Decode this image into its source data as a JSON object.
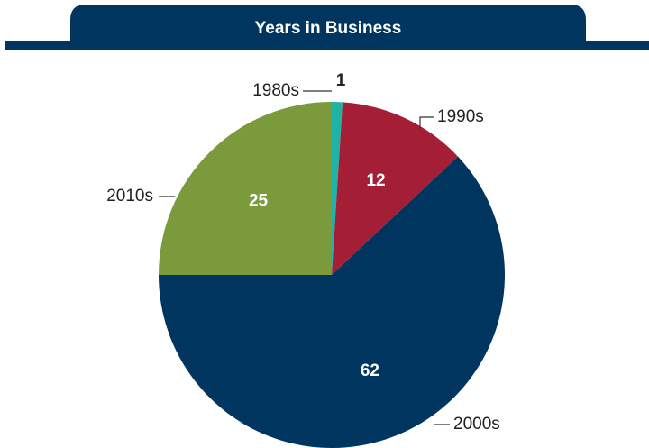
{
  "chart_data": {
    "type": "pie",
    "title": "Years in Business",
    "categories": [
      "1980s",
      "1990s",
      "2000s",
      "2010s"
    ],
    "values": [
      1,
      12,
      62,
      25
    ],
    "colors": [
      "#1fb3a6",
      "#a41f35",
      "#00355f",
      "#7a9a3c"
    ]
  }
}
